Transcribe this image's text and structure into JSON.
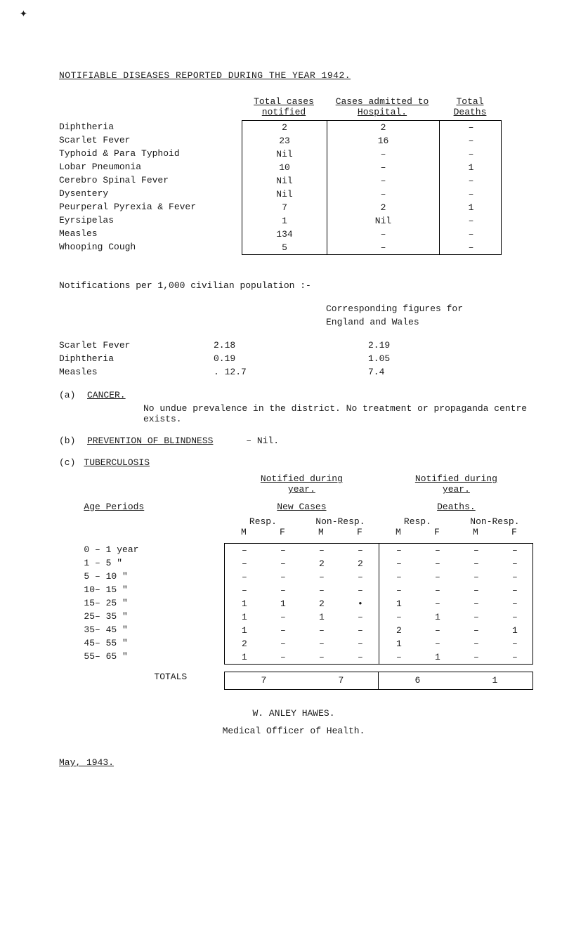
{
  "title": "NOTIFIABLE DISEASES REPORTED DURING THE YEAR 1942.",
  "table1": {
    "headers": [
      "",
      "Total cases notified",
      "Cases admitted to Hospital.",
      "Total Deaths"
    ],
    "rows": [
      {
        "label": "Diphtheria",
        "notified": "2",
        "admitted": "2",
        "deaths": "–"
      },
      {
        "label": "Scarlet Fever",
        "notified": "23",
        "admitted": "16",
        "deaths": "–"
      },
      {
        "label": "Typhoid & Para Typhoid",
        "notified": "Nil",
        "admitted": "–",
        "deaths": "–"
      },
      {
        "label": "Lobar Pneumonia",
        "notified": "10",
        "admitted": "–",
        "deaths": "1"
      },
      {
        "label": "Cerebro Spinal Fever",
        "notified": "Nil",
        "admitted": "–",
        "deaths": "–"
      },
      {
        "label": "Dysentery",
        "notified": "Nil",
        "admitted": "–",
        "deaths": "–"
      },
      {
        "label": "Peurperal Pyrexia & Fever",
        "notified": "7",
        "admitted": "2",
        "deaths": "1"
      },
      {
        "label": "Eyrsipelas",
        "notified": "1",
        "admitted": "Nil",
        "deaths": "–"
      },
      {
        "label": "Measles",
        "notified": "134",
        "admitted": "–",
        "deaths": "–"
      },
      {
        "label": "Whooping Cough",
        "notified": "5",
        "admitted": "–",
        "deaths": "–"
      }
    ]
  },
  "per1000": {
    "lead": "Notifications per 1,000 civilian population :-",
    "corr": "Corresponding figures for England and Wales",
    "rows": [
      {
        "label": "Scarlet Fever",
        "local": "2.18",
        "ew": "2.19"
      },
      {
        "label": "Diphtheria",
        "local": "0.19",
        "ew": "1.05"
      },
      {
        "label": "Measles",
        "local": ". 12.7",
        "ew": "7.4"
      }
    ]
  },
  "sections": {
    "a": {
      "lbl": "(a)",
      "title": "CANCER.",
      "text": "No undue prevalence in the district.  No treatment or propaganda centre exists."
    },
    "b": {
      "lbl": "(b)",
      "title": "PREVENTION OF BLINDNESS",
      "text": "–   Nil."
    },
    "c": {
      "lbl": "(c)",
      "title": "TUBERCULOSIS"
    }
  },
  "tb": {
    "notified_head": "Notified during",
    "notified_sub": "year.",
    "age_label": "Age Periods",
    "new_cases": "New Cases",
    "deaths": "Deaths.",
    "resp": "Resp.",
    "nonresp": "Non-Resp.",
    "M": "M",
    "F": "F",
    "ages": [
      "0 – 1 year",
      "1 – 5  \"",
      "5 – 10 \"",
      "10– 15 \"",
      "15– 25 \"",
      "25– 35 \"",
      "35– 45 \"",
      "45– 55 \"",
      "55– 65 \""
    ],
    "matrix_left": [
      [
        "–",
        "–",
        "–",
        "–"
      ],
      [
        "–",
        "–",
        "2",
        "2"
      ],
      [
        "–",
        "–",
        "–",
        "–"
      ],
      [
        "–",
        "–",
        "–",
        "–"
      ],
      [
        "1",
        "1",
        "2",
        "•"
      ],
      [
        "1",
        "–",
        "1",
        "–"
      ],
      [
        "1",
        "–",
        "–",
        "–"
      ],
      [
        "2",
        "–",
        "–",
        "–"
      ],
      [
        "1",
        "–",
        "–",
        "–"
      ]
    ],
    "matrix_right": [
      [
        "–",
        "–",
        "–",
        "–"
      ],
      [
        "–",
        "–",
        "–",
        "–"
      ],
      [
        "–",
        "–",
        "–",
        "–"
      ],
      [
        "–",
        "–",
        "–",
        "–"
      ],
      [
        "1",
        "–",
        "–",
        "–"
      ],
      [
        "–",
        "1",
        "–",
        "–"
      ],
      [
        "2",
        "–",
        "–",
        "1"
      ],
      [
        "1",
        "–",
        "–",
        "–"
      ],
      [
        "–",
        "1",
        "–",
        "–"
      ]
    ],
    "totals_label": "TOTALS",
    "totals_left": [
      "7",
      "7"
    ],
    "totals_right": [
      "6",
      "1"
    ]
  },
  "footer": {
    "signature": "W. ANLEY HAWES.",
    "role": "Medical Officer of Health.",
    "date": "May, 1943."
  },
  "style": {
    "background_color": "#ffffff",
    "text_color": "#1a1a1a",
    "border_color": "#000000",
    "font_family": "Courier New",
    "font_size_pt": 10
  }
}
